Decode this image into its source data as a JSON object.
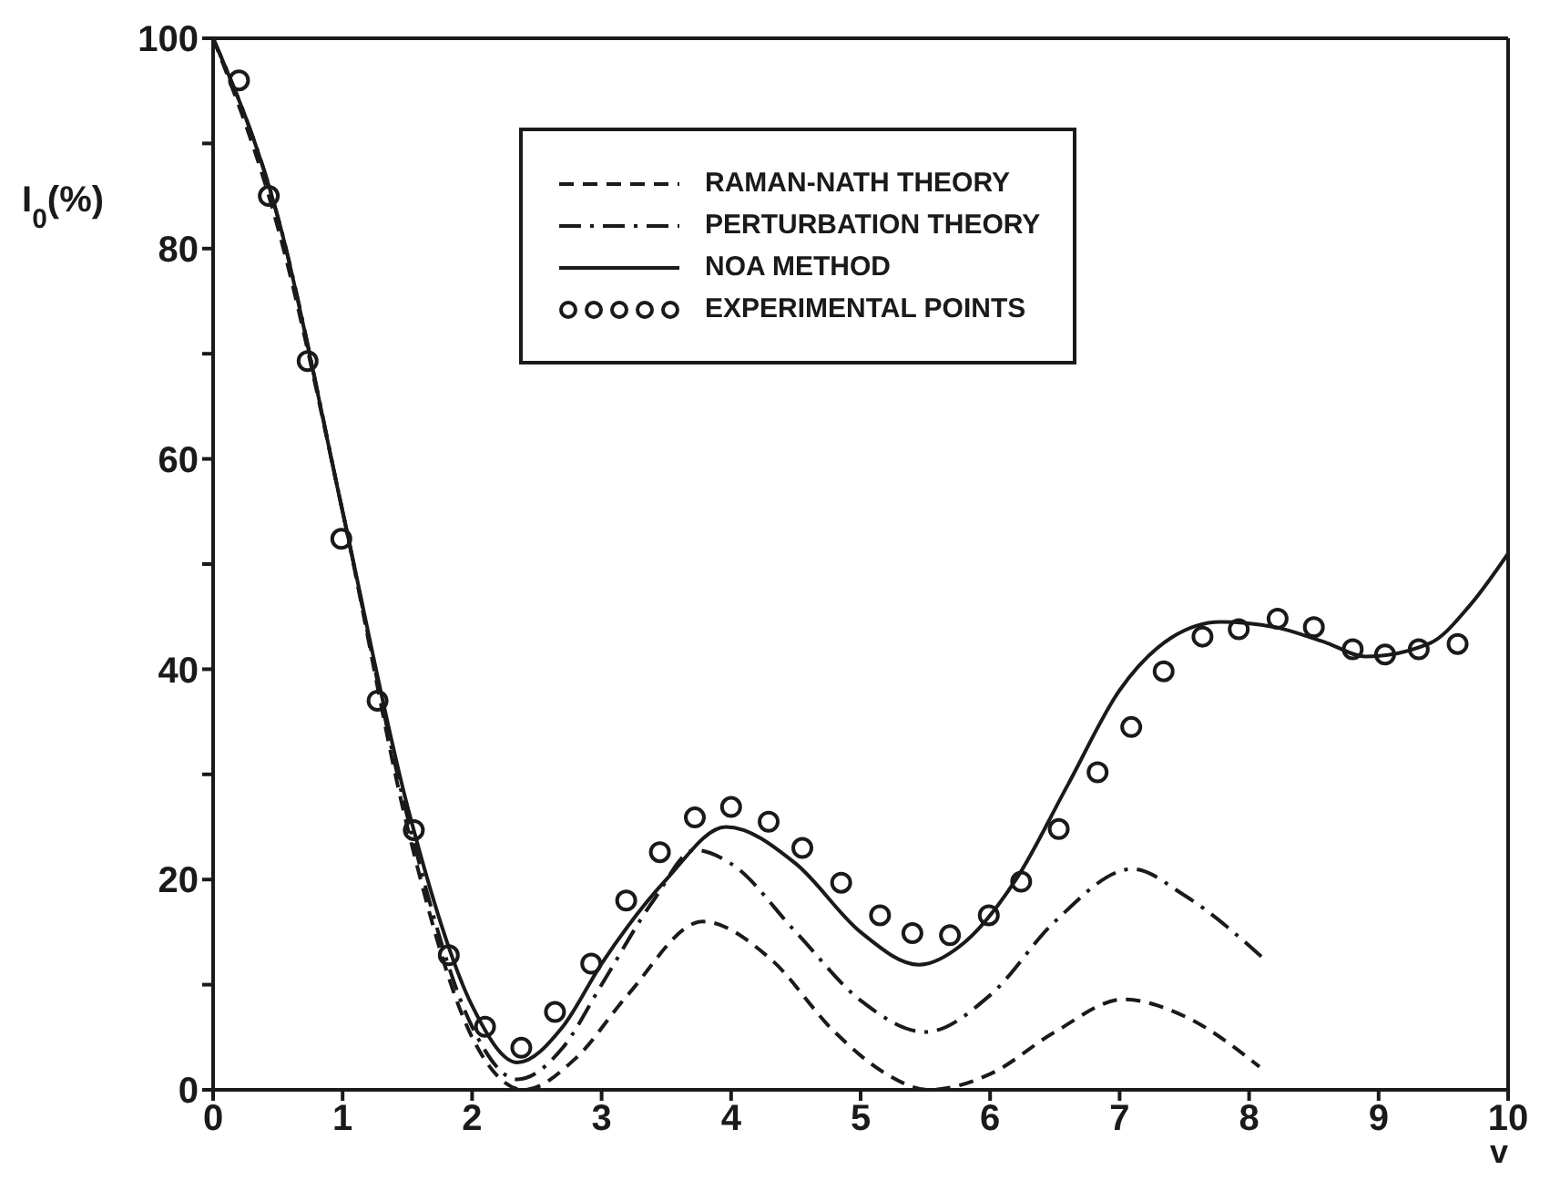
{
  "chart_data": {
    "type": "line",
    "xlabel": "v",
    "ylabel": "I$_{0}$(%)",
    "xlim": [
      0,
      10
    ],
    "xticks": [
      0,
      1,
      2,
      3,
      4,
      5,
      6,
      7,
      8,
      9,
      10
    ],
    "ylim": [
      0,
      100
    ],
    "yticks": [
      0,
      {
        "value": 10,
        "label": null
      },
      20,
      {
        "value": 30,
        "label": null
      },
      40,
      {
        "value": 50,
        "label": null
      },
      60,
      {
        "value": 70,
        "label": null
      },
      80,
      {
        "value": 90,
        "label": null
      },
      100
    ],
    "grid": false,
    "legend": "top",
    "series": [
      {
        "name": "RAMAN-NATH THEORY",
        "line_style": "dashed",
        "marker": "none",
        "color": "#1a1a1a",
        "x": [
          0,
          0.5,
          1,
          1.5,
          2,
          2.4,
          2.8,
          3.2,
          3.78,
          4.3,
          4.8,
          5.2,
          5.52,
          6,
          6.5,
          7.03,
          7.5,
          8.08
        ],
        "values": [
          100,
          82,
          55,
          25,
          5,
          0,
          3,
          9,
          16,
          12.5,
          5.5,
          1.5,
          0,
          1.5,
          5.5,
          8.6,
          7,
          2.2
        ]
      },
      {
        "name": "PERTURBATION THEORY",
        "line_style": "dashdot",
        "marker": "none",
        "color": "#1a1a1a",
        "x": [
          0,
          0.5,
          1,
          1.5,
          2,
          2.35,
          2.7,
          3,
          3.4,
          3.72,
          4,
          4.5,
          5,
          5.5,
          6,
          6.5,
          7.1,
          7.5,
          8.12
        ],
        "values": [
          100,
          83,
          55,
          26,
          6,
          1,
          4,
          10,
          18,
          22.8,
          21.5,
          15,
          8.5,
          5.5,
          9,
          16,
          21,
          18.5,
          12.4
        ]
      },
      {
        "name": "NOA METHOD",
        "line_style": "solid",
        "marker": "none",
        "color": "#1a1a1a",
        "x": [
          0,
          0.5,
          1,
          1.5,
          2,
          2.35,
          2.7,
          3,
          3.5,
          3.96,
          4.5,
          5,
          5.45,
          5.8,
          6.2,
          6.6,
          7,
          7.4,
          7.78,
          8.2,
          8.6,
          8.9,
          9.4,
          9.7,
          10
        ],
        "values": [
          100,
          83,
          55,
          27,
          8,
          2.6,
          6,
          12,
          20,
          25,
          21.5,
          15,
          11.9,
          14,
          20,
          29,
          38,
          43,
          44.5,
          44,
          42.5,
          41.2,
          42.5,
          46,
          51
        ]
      },
      {
        "name": "EXPERIMENTAL POINTS",
        "type": "scatter",
        "marker": "circle",
        "color": "#1a1a1a",
        "x": [
          0.2,
          0.43,
          0.73,
          0.99,
          1.27,
          1.55,
          1.82,
          2.1,
          2.38,
          2.64,
          2.92,
          3.19,
          3.45,
          3.72,
          4.0,
          4.29,
          4.55,
          4.85,
          5.15,
          5.4,
          5.69,
          5.99,
          6.24,
          6.53,
          6.83,
          7.09,
          7.34,
          7.64,
          7.92,
          8.22,
          8.5,
          8.8,
          9.05,
          9.31,
          9.61
        ],
        "values": [
          96,
          85,
          69.3,
          52.4,
          37,
          24.7,
          12.8,
          6,
          4,
          7.4,
          12,
          18,
          22.6,
          25.9,
          26.9,
          25.5,
          23,
          19.7,
          16.6,
          14.9,
          14.7,
          16.6,
          19.8,
          24.8,
          30.2,
          34.5,
          39.8,
          43.1,
          43.8,
          44.8,
          44,
          41.9,
          41.4,
          41.9,
          42.4
        ]
      }
    ]
  }
}
